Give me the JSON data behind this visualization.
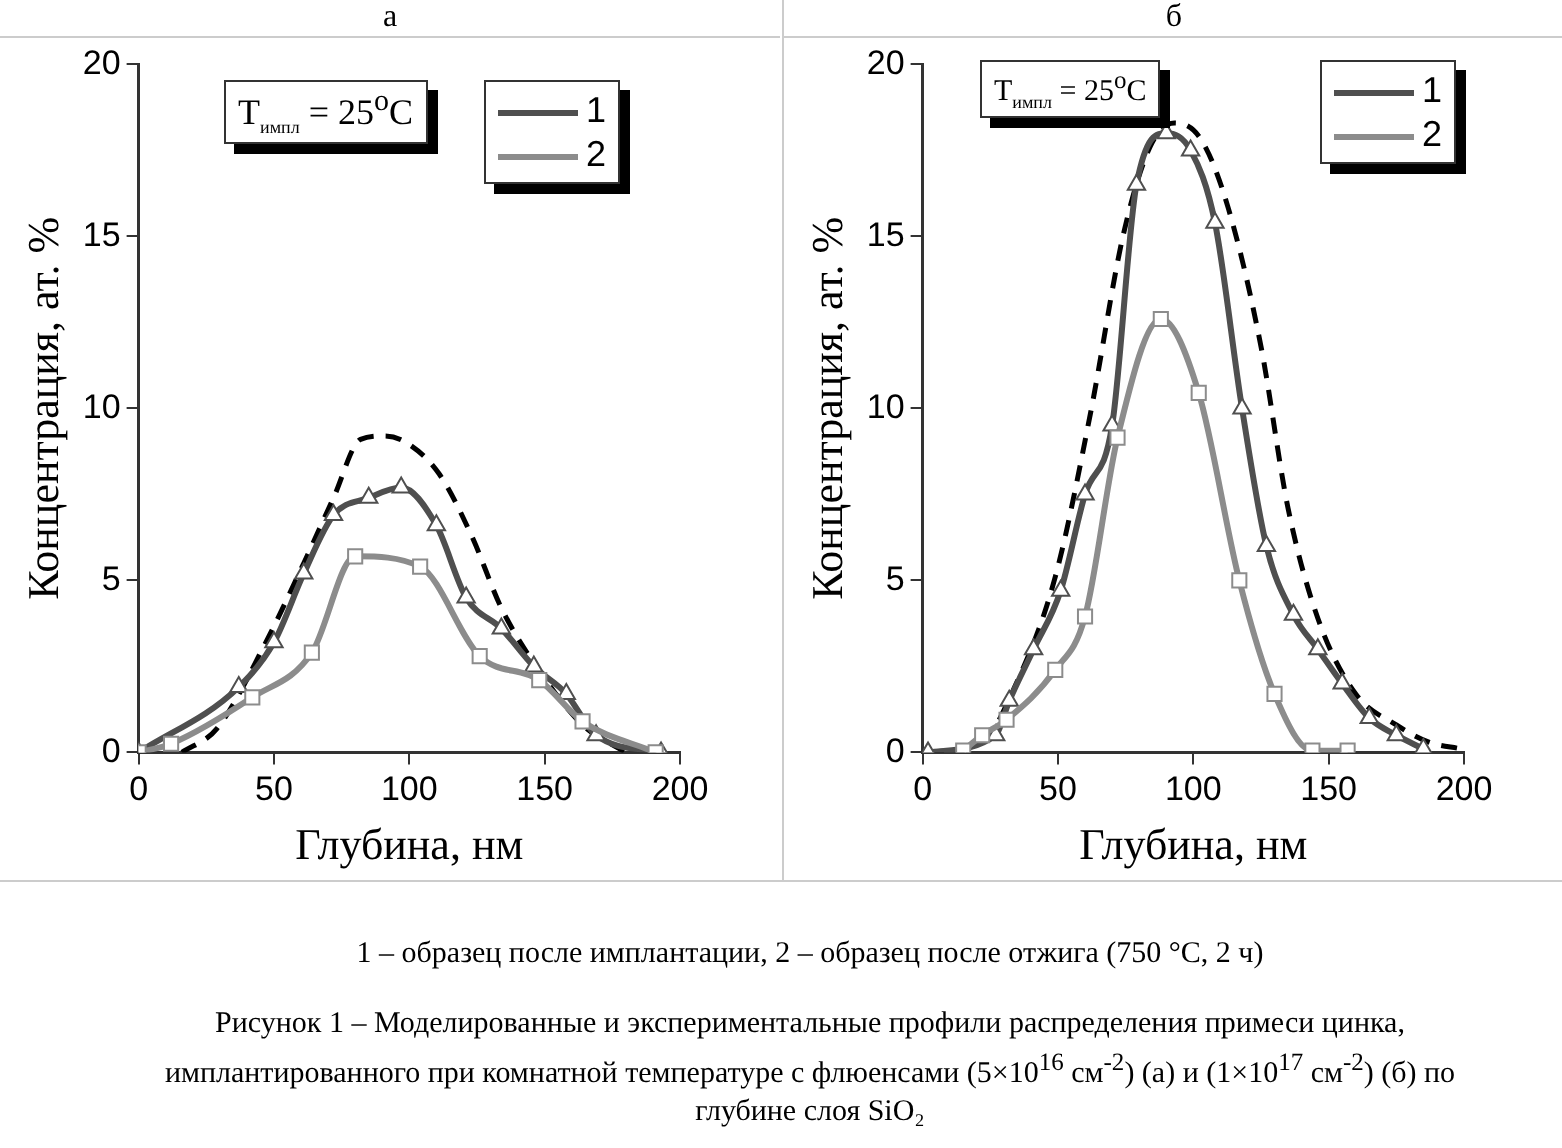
{
  "chart_data": [
    {
      "type": "line",
      "title": "а",
      "xlabel": "Глубина, нм",
      "ylabel": "Концентрация, ат. %",
      "xlim": [
        0,
        200
      ],
      "xticks": [
        0,
        50,
        100,
        150,
        200
      ],
      "ylim": [
        0,
        20
      ],
      "yticks": [
        0,
        5,
        10,
        15,
        20
      ],
      "legend": "top right",
      "grid": false,
      "annotations": [
        "T$_{импл}$ = 25$^{o}$C",
        "1 – образец после имплантации, 2 – образец после отжига (750 °C, 2 ч)"
      ],
      "series": [
        {
          "name": "1",
          "color": "#4f4f4f",
          "marker": "triangle",
          "line_style": "solid",
          "x": [
            0,
            37,
            50,
            61,
            72,
            85,
            97,
            110,
            121,
            134,
            146,
            158,
            169,
            193
          ],
          "values": [
            0,
            1.9,
            3.2,
            5.2,
            6.9,
            7.4,
            7.7,
            6.6,
            4.5,
            3.6,
            2.5,
            1.7,
            0.5,
            0
          ]
        },
        {
          "name": "2",
          "color": "#8c8c8c",
          "marker": "square",
          "line_style": "solid",
          "x": [
            0,
            12,
            42,
            64,
            80,
            104,
            126,
            148,
            164,
            191
          ],
          "values": [
            0,
            0.25,
            1.6,
            2.9,
            5.7,
            5.4,
            2.8,
            2.1,
            0.9,
            0
          ]
        },
        {
          "color": "#000000",
          "marker": "none",
          "line_style": "dashed",
          "x": [
            16,
            29,
            47,
            61,
            72,
            82,
            91,
            99,
            111,
            123,
            134,
            146,
            164,
            180
          ],
          "values": [
            0,
            0.7,
            3.2,
            5.5,
            7.4,
            9.1,
            9.2,
            9.0,
            8.1,
            6.3,
            4.2,
            2.6,
            0.8,
            0
          ]
        }
      ]
    },
    {
      "type": "line",
      "title": "б",
      "xlabel": "Глубина, нм",
      "ylabel": "Концентрация, ат. %",
      "xlim": [
        0,
        200
      ],
      "xticks": [
        0,
        50,
        100,
        150,
        200
      ],
      "ylim": [
        0,
        20
      ],
      "yticks": [
        0,
        5,
        10,
        15,
        20
      ],
      "legend": "top right",
      "grid": false,
      "annotations": [
        "T$_{импл}$ = 25$^{o}$C",
        "Рисунок 1 – Моделированные и экспериментальные профили распределения примеси цинка, имплантированного при комнатной температуре с флюенсами (5×10$^{16}$ см$^{-2}$) (а) и (1×10$^{17}$ см$^{-2}$) (б) по глубине слоя SiO₂"
      ],
      "series": [
        {
          "name": "1",
          "color": "#4f4f4f",
          "marker": "triangle",
          "line_style": "solid",
          "x": [
            2,
            27,
            32,
            41,
            51,
            60,
            70,
            79,
            90,
            99,
            108,
            118,
            127,
            137,
            146,
            155,
            165,
            175,
            185
          ],
          "values": [
            0,
            0.5,
            1.5,
            3.0,
            4.7,
            7.5,
            9.5,
            16.5,
            18.0,
            17.5,
            15.4,
            10.0,
            6.0,
            4.0,
            3.0,
            2.0,
            1.0,
            0.5,
            0.1
          ]
        },
        {
          "name": "2",
          "color": "#8c8c8c",
          "marker": "square",
          "line_style": "solid",
          "x": [
            15,
            22,
            31,
            49,
            60,
            72,
            88,
            102,
            117,
            130,
            144,
            157
          ],
          "values": [
            0.05,
            0.5,
            0.95,
            2.4,
            3.95,
            9.15,
            12.6,
            10.45,
            5.0,
            1.7,
            0.05,
            0.05
          ]
        },
        {
          "color": "#000000",
          "marker": "none",
          "line_style": "dashed",
          "x": [
            2,
            22,
            34,
            49,
            62,
            74,
            84,
            93,
            103,
            113,
            125,
            135,
            146,
            160,
            175,
            187,
            199
          ],
          "values": [
            0,
            0.3,
            1.9,
            5.1,
            9.85,
            15,
            17.6,
            18.3,
            17.8,
            15.8,
            11.8,
            7.1,
            3.9,
            1.7,
            0.8,
            0.3,
            0.1
          ]
        }
      ]
    }
  ]
}
